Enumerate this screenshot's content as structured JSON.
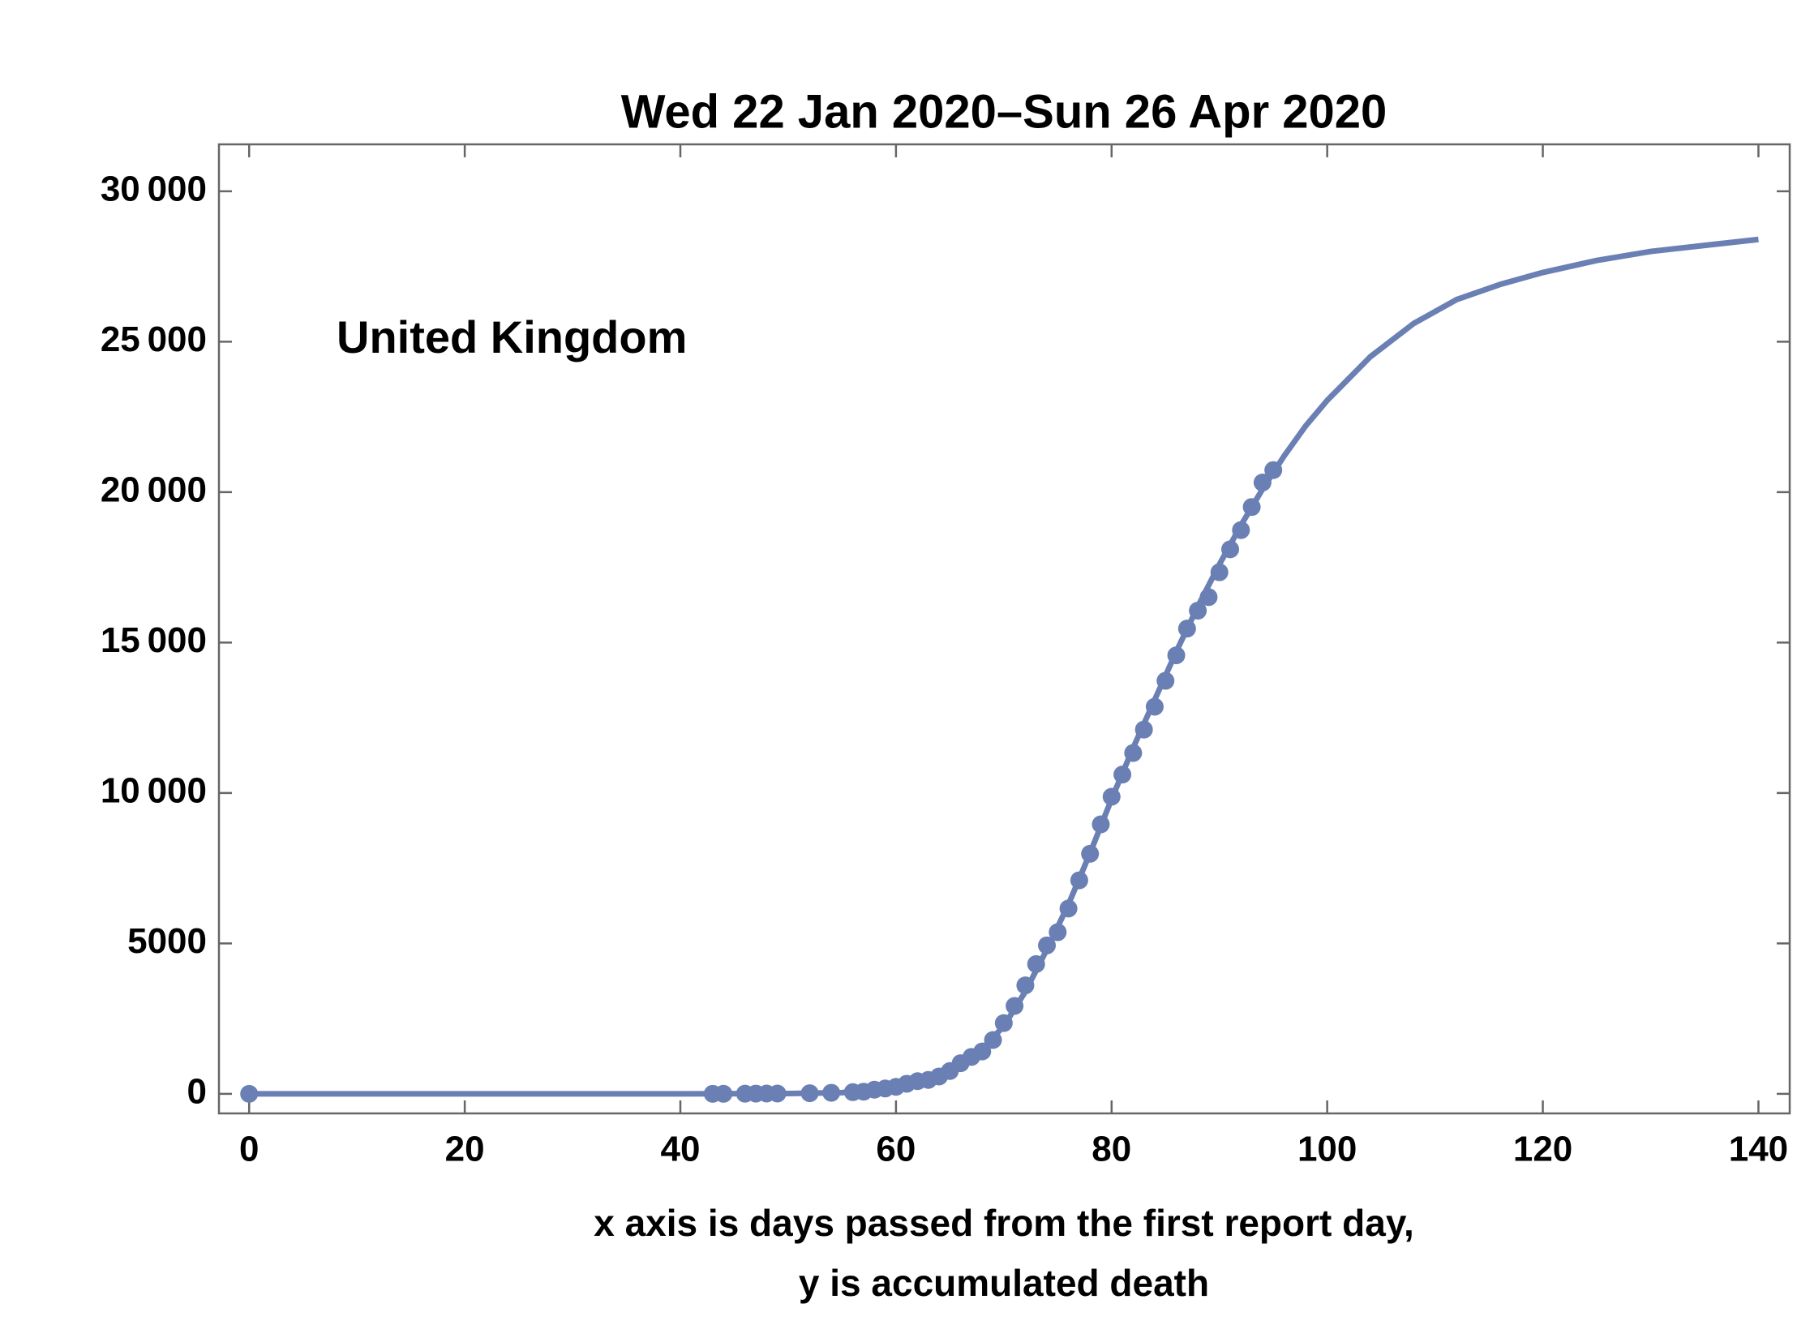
{
  "chart_data": {
    "type": "scatter",
    "title": "Wed 22 Jan 2020–Sun 26 Apr 2020",
    "annotation": "United Kingdom",
    "xlabel": [
      "x axis is days passed from the first report day,",
      "y is accumulated death"
    ],
    "xlim": [
      -2.8,
      142.9
    ],
    "ylim": [
      -650,
      31560
    ],
    "xticks": [
      0,
      20,
      40,
      60,
      80,
      100,
      120,
      140
    ],
    "yticks": [
      0,
      5000,
      {
        "value": 10000,
        "label": "10 000"
      },
      {
        "value": 15000,
        "label": "15 000"
      },
      {
        "value": 20000,
        "label": "20 000"
      },
      {
        "value": 25000,
        "label": "25 000"
      },
      {
        "value": 30000,
        "label": "30 000"
      }
    ],
    "series": [
      {
        "type": "scatter",
        "color": "#6a7fb3",
        "x": [
          0,
          43,
          44,
          46,
          47,
          48,
          49,
          52,
          54,
          56,
          57,
          58,
          59,
          60,
          61,
          62,
          63,
          64,
          65,
          66,
          67,
          68,
          69,
          70,
          71,
          72,
          73,
          74,
          75,
          76,
          77,
          78,
          79,
          80,
          81,
          82,
          83,
          84,
          85,
          86,
          87,
          88,
          89,
          90,
          91,
          92,
          93,
          94,
          95
        ],
        "values": [
          0,
          1,
          2,
          6,
          8,
          10,
          11,
          21,
          35,
          56,
          72,
          138,
          178,
          233,
          335,
          422,
          463,
          578,
          759,
          1019,
          1228,
          1408,
          1789,
          2352,
          2921,
          3605,
          4313,
          4934,
          5373,
          6159,
          7097,
          7978,
          8958,
          9875,
          10612,
          11329,
          12107,
          12868,
          13729,
          14576,
          15464,
          16060,
          16509,
          17337,
          18100,
          18738,
          19506,
          20319,
          20732
        ]
      },
      {
        "type": "line",
        "color": "#6a7fb3",
        "x": [
          0,
          40,
          50,
          55,
          60,
          62,
          64,
          66,
          68,
          70,
          72,
          74,
          76,
          78,
          80,
          82,
          84,
          86,
          88,
          90,
          92,
          94,
          96,
          98,
          100,
          104,
          108,
          112,
          116,
          120,
          125,
          130,
          135,
          140
        ],
        "values": [
          0,
          0,
          10,
          40,
          200,
          360,
          620,
          1000,
          1500,
          2250,
          3400,
          4800,
          6300,
          8000,
          9800,
          11500,
          13100,
          14700,
          16200,
          17600,
          18900,
          20100,
          21200,
          22200,
          23050,
          24500,
          25600,
          26400,
          26900,
          27300,
          27700,
          28000,
          28200,
          28400
        ]
      }
    ]
  }
}
